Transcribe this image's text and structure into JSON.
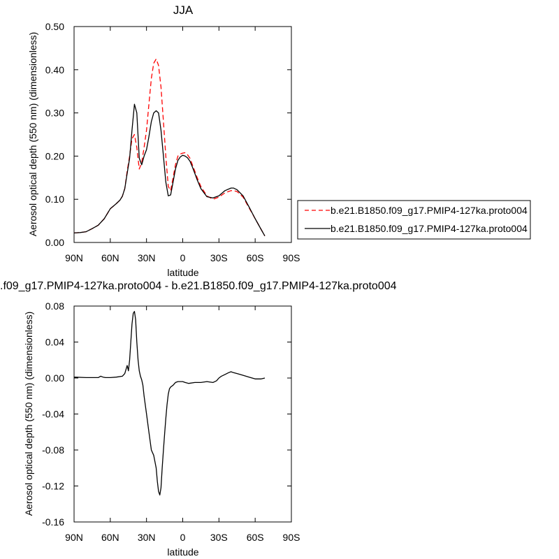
{
  "chart_data": [
    {
      "type": "line",
      "title": "JJA",
      "xlabel": "latitude",
      "ylabel": "Aerosol optical depth (550 nm) (dimensionless)",
      "xlim": [
        90,
        -90
      ],
      "ylim": [
        0.0,
        0.5
      ],
      "x_ticks": [
        90,
        60,
        30,
        0,
        -30,
        -60,
        -90
      ],
      "x_tick_labels": [
        "90N",
        "60N",
        "30N",
        "0",
        "30S",
        "60S",
        "90S"
      ],
      "y_ticks": [
        0.0,
        0.1,
        0.2,
        0.3,
        0.4,
        0.5
      ],
      "y_tick_labels": [
        "0.00",
        "0.10",
        "0.20",
        "0.30",
        "0.40",
        "0.50"
      ],
      "legend_position": "right",
      "series": [
        {
          "name": "b.e21.B1850.f09_g17.PMIP4-127ka.proto004",
          "color": "#ff0000",
          "dash": "dashed",
          "x": [
            90,
            85,
            80,
            75,
            70,
            65,
            60,
            55,
            52,
            50,
            48,
            46,
            44,
            42,
            40,
            38,
            36,
            34,
            32,
            30,
            28,
            26,
            24,
            22,
            20,
            18,
            16,
            14,
            12,
            10,
            8,
            6,
            4,
            2,
            0,
            -2,
            -4,
            -6,
            -8,
            -10,
            -12,
            -15,
            -20,
            -25,
            -30,
            -35,
            -40,
            -42,
            -45,
            -50,
            -55,
            -60,
            -65,
            -68
          ],
          "y": [
            0.022,
            0.023,
            0.025,
            0.032,
            0.04,
            0.055,
            0.078,
            0.09,
            0.098,
            0.107,
            0.125,
            0.165,
            0.2,
            0.24,
            0.25,
            0.22,
            0.17,
            0.185,
            0.22,
            0.26,
            0.32,
            0.38,
            0.415,
            0.425,
            0.41,
            0.36,
            0.28,
            0.2,
            0.13,
            0.12,
            0.15,
            0.18,
            0.2,
            0.205,
            0.207,
            0.208,
            0.203,
            0.195,
            0.18,
            0.165,
            0.15,
            0.13,
            0.108,
            0.1,
            0.105,
            0.115,
            0.12,
            0.12,
            0.118,
            0.105,
            0.08,
            0.055,
            0.03,
            0.015
          ]
        },
        {
          "name": "b.e21.B1850.f09_g17.PMIP4-127ka.proto004",
          "color": "#000000",
          "dash": "solid",
          "x": [
            90,
            85,
            80,
            75,
            70,
            65,
            60,
            55,
            52,
            50,
            48,
            46,
            44,
            42,
            40,
            38,
            36,
            34,
            32,
            30,
            28,
            26,
            24,
            22,
            20,
            18,
            16,
            14,
            12,
            10,
            8,
            6,
            4,
            2,
            0,
            -2,
            -4,
            -6,
            -8,
            -10,
            -12,
            -15,
            -20,
            -25,
            -30,
            -35,
            -40,
            -42,
            -45,
            -50,
            -55,
            -60,
            -65,
            -68
          ],
          "y": [
            0.022,
            0.023,
            0.025,
            0.032,
            0.04,
            0.055,
            0.078,
            0.09,
            0.098,
            0.107,
            0.125,
            0.16,
            0.195,
            0.26,
            0.32,
            0.3,
            0.195,
            0.18,
            0.2,
            0.215,
            0.245,
            0.28,
            0.3,
            0.305,
            0.3,
            0.26,
            0.2,
            0.14,
            0.108,
            0.11,
            0.14,
            0.17,
            0.19,
            0.198,
            0.202,
            0.2,
            0.196,
            0.188,
            0.175,
            0.16,
            0.145,
            0.125,
            0.106,
            0.103,
            0.108,
            0.12,
            0.126,
            0.126,
            0.122,
            0.108,
            0.082,
            0.055,
            0.03,
            0.015
          ]
        }
      ]
    },
    {
      "type": "line",
      "title": ".f09_g17.PMIP4-127ka.proto004 - b.e21.B1850.f09_g17.PMIP4-127ka.proto004",
      "xlabel": "latitude",
      "ylabel": "Aerosol optical depth (550 nm) (dimensionless)",
      "xlim": [
        90,
        -90
      ],
      "ylim": [
        -0.16,
        0.08
      ],
      "x_ticks": [
        90,
        60,
        30,
        0,
        -30,
        -60,
        -90
      ],
      "x_tick_labels": [
        "90N",
        "60N",
        "30N",
        "0",
        "30S",
        "60S",
        "90S"
      ],
      "y_ticks": [
        0.08,
        0.04,
        0.0,
        -0.04,
        -0.08,
        -0.12,
        -0.16
      ],
      "y_tick_labels": [
        "0.08",
        "0.04",
        "0.00",
        "-0.04",
        "-0.08",
        "-0.12",
        "-0.16"
      ],
      "series": [
        {
          "color": "#000000",
          "dash": "solid",
          "x": [
            90,
            80,
            70,
            68,
            66,
            64,
            60,
            55,
            50,
            48,
            46,
            45,
            44,
            43,
            42,
            41,
            40,
            39,
            38,
            37,
            36,
            35,
            34,
            33,
            32,
            30,
            28,
            26,
            24,
            22,
            21,
            20,
            19,
            18,
            17,
            16,
            15,
            14,
            13,
            12,
            11,
            10,
            8,
            6,
            4,
            2,
            0,
            -2,
            -5,
            -10,
            -15,
            -20,
            -25,
            -28,
            -30,
            -32,
            -35,
            -38,
            -40,
            -42,
            -45,
            -50,
            -55,
            -60,
            -65,
            -68
          ],
          "y": [
            0.001,
            0.0005,
            0.0005,
            0.002,
            0.001,
            0.0005,
            0.0005,
            0.001,
            0.002,
            0.005,
            0.014,
            0.008,
            0.02,
            0.04,
            0.06,
            0.072,
            0.074,
            0.065,
            0.04,
            0.02,
            0.008,
            0.002,
            -0.002,
            -0.008,
            -0.02,
            -0.04,
            -0.06,
            -0.08,
            -0.086,
            -0.1,
            -0.115,
            -0.126,
            -0.13,
            -0.122,
            -0.1,
            -0.08,
            -0.062,
            -0.045,
            -0.03,
            -0.018,
            -0.012,
            -0.01,
            -0.008,
            -0.005,
            -0.004,
            -0.004,
            -0.004,
            -0.005,
            -0.006,
            -0.005,
            -0.005,
            -0.004,
            -0.005,
            -0.003,
            0.0,
            0.002,
            0.004,
            0.006,
            0.007,
            0.006,
            0.005,
            0.003,
            0.001,
            -0.001,
            -0.001,
            0.0
          ]
        }
      ]
    }
  ]
}
